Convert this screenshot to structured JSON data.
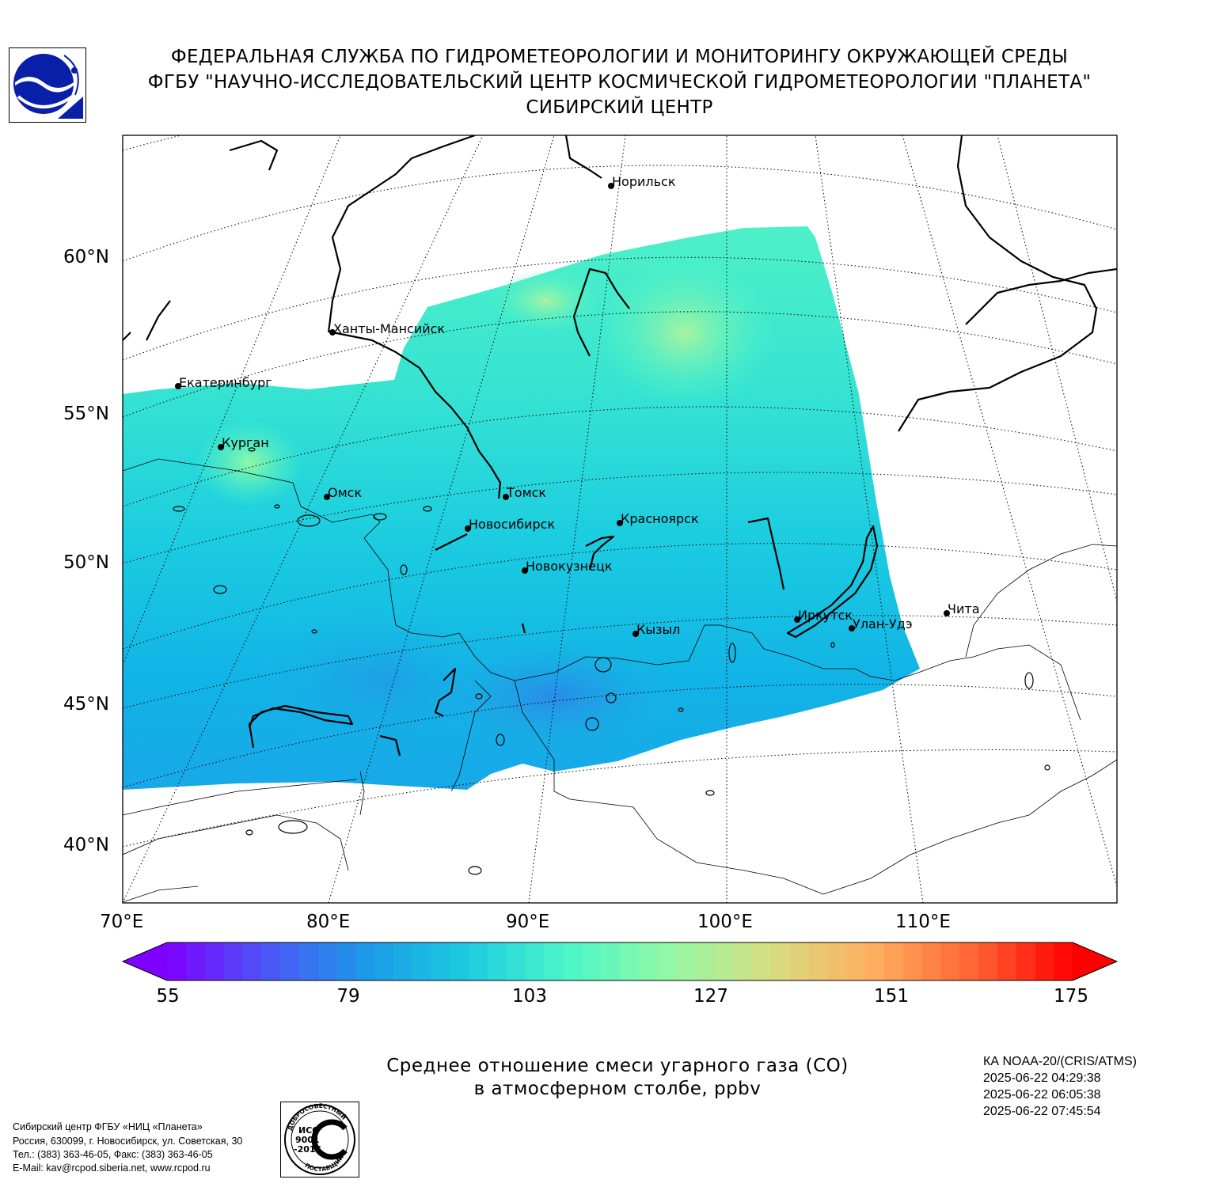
{
  "header": {
    "line1": "ФЕДЕРАЛЬНАЯ СЛУЖБА ПО ГИДРОМЕТЕОРОЛОГИИ И МОНИТОРИНГУ ОКРУЖАЮЩЕЙ СРЕДЫ",
    "line2": "ФГБУ \"НАУЧНО-ИССЛЕДОВАТЕЛЬСКИЙ ЦЕНТР КОСМИЧЕСКОЙ ГИДРОМЕТЕОРОЛОГИИ \"ПЛАНЕТА\"",
    "line3": "СИБИРСКИЙ ЦЕНТР"
  },
  "map": {
    "projection": "conic",
    "lat_labels": [
      "60°N",
      "55°N",
      "50°N",
      "45°N",
      "40°N"
    ],
    "lon_labels": [
      "70°E",
      "80°E",
      "90°E",
      "100°E",
      "110°E"
    ],
    "cities": [
      {
        "name": "Норильск"
      },
      {
        "name": "Ханты-Мансийск"
      },
      {
        "name": "Екатеринбург"
      },
      {
        "name": "Курган"
      },
      {
        "name": "Омск"
      },
      {
        "name": "Томск"
      },
      {
        "name": "Новосибирск"
      },
      {
        "name": "Красноярск"
      },
      {
        "name": "Новокузнецк"
      },
      {
        "name": "Иркутск"
      },
      {
        "name": "Улан-Удэ"
      },
      {
        "name": "Чита"
      },
      {
        "name": "Кызыл"
      }
    ]
  },
  "colorbar": {
    "ticks": [
      "55",
      "79",
      "103",
      "127",
      "151",
      "175"
    ],
    "colors": [
      "#7f00ff",
      "#4b57f6",
      "#1c9be8",
      "#1ccde0",
      "#4df7c7",
      "#93f8a4",
      "#d7dd82",
      "#ffb060",
      "#ff6535",
      "#ff0000"
    ]
  },
  "caption": {
    "line1": "Среднее отношение смеси угарного газа (CO)",
    "line2": "в атмосферном столбе, ppbv"
  },
  "info": {
    "satellite": "КА NOAA-20/(CRIS/ATMS)",
    "time1": "2025-06-22 04:29:38",
    "time2": "2025-06-22 06:05:38",
    "time3": "2025-06-22 07:45:54"
  },
  "footer": {
    "line1": "Сибирский центр ФГБУ «НИЦ «Планета»",
    "line2": "Россия, 630099, г. Новосибирск, ул. Советская, 30",
    "line3": "Тел.: (383) 363-46-05, Факс: (383) 363-46-05",
    "line4": "E-Mail: kav@rcpod.siberia.net, www.rcpod.ru"
  },
  "iso_badge": {
    "top_text": "ДОБРОСОВЕСТНЫЙ",
    "line1": "ИСО",
    "line2": "9001",
    "line3": "-2015",
    "bottom_text": "ПОСТАВЩИК"
  }
}
